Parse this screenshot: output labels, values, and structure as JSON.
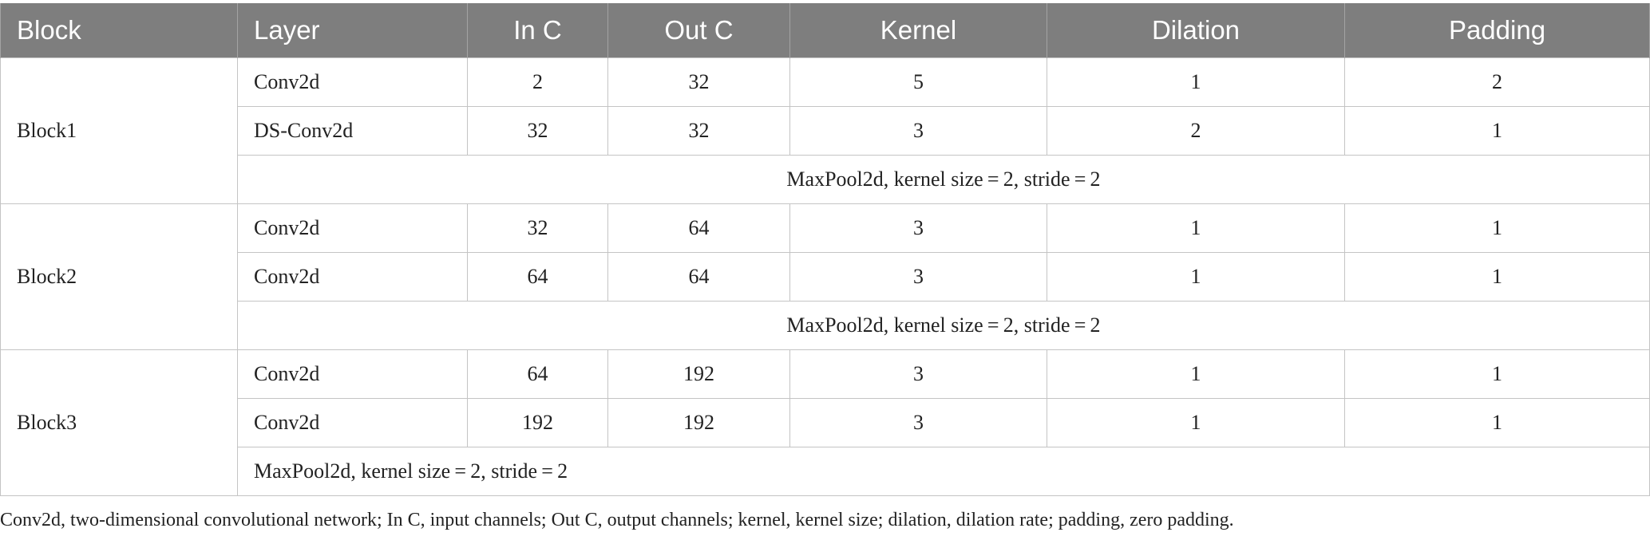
{
  "headers": [
    "Block",
    "Layer",
    "In C",
    "Out C",
    "Kernel",
    "Dilation",
    "Padding"
  ],
  "blocks": [
    {
      "name": "Block1",
      "rows": [
        {
          "layer": "Conv2d",
          "in_c": "2",
          "out_c": "32",
          "kernel": "5",
          "dilation": "1",
          "padding": "2"
        },
        {
          "layer": "DS-Conv2d",
          "in_c": "32",
          "out_c": "32",
          "kernel": "3",
          "dilation": "2",
          "padding": "1"
        }
      ],
      "pool": "MaxPool2d, kernel size = 2, stride = 2"
    },
    {
      "name": "Block2",
      "rows": [
        {
          "layer": "Conv2d",
          "in_c": "32",
          "out_c": "64",
          "kernel": "3",
          "dilation": "1",
          "padding": "1"
        },
        {
          "layer": "Conv2d",
          "in_c": "64",
          "out_c": "64",
          "kernel": "3",
          "dilation": "1",
          "padding": "1"
        }
      ],
      "pool": "MaxPool2d, kernel size = 2, stride = 2"
    },
    {
      "name": "Block3",
      "rows": [
        {
          "layer": "Conv2d",
          "in_c": "64",
          "out_c": "192",
          "kernel": "3",
          "dilation": "1",
          "padding": "1"
        },
        {
          "layer": "Conv2d",
          "in_c": "192",
          "out_c": "192",
          "kernel": "3",
          "dilation": "1",
          "padding": "1"
        }
      ],
      "pool": "MaxPool2d, kernel size = 2, stride = 2"
    }
  ],
  "footnote": "Conv2d, two-dimensional convolutional network; In C, input channels; Out C, output channels; kernel, kernel size; dilation, dilation rate; padding, zero padding.",
  "colors": {
    "header_bg": "#7e7e7e",
    "header_text": "#ffffff",
    "grid_line": "#c4c4c4"
  }
}
